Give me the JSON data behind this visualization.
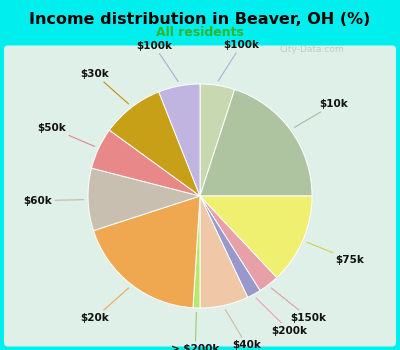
{
  "title": "Income distribution in Beaver, OH (%)",
  "subtitle": "All residents",
  "title_color": "#000000",
  "subtitle_color": "#2db82d",
  "background_color": "#00EEEE",
  "chart_bg_gradient_top": "#d6f0e8",
  "chart_bg_gradient_bottom": "#e8f8f0",
  "watermark": "City-Data.com",
  "slices": [
    {
      "label": "$100k",
      "value": 5,
      "color": "#c8d8b0"
    },
    {
      "label": "$10k",
      "value": 20,
      "color": "#aec4a0"
    },
    {
      "label": "$75k",
      "value": 13,
      "color": "#f0f070"
    },
    {
      "label": "$150k",
      "value": 3,
      "color": "#e8a0a8"
    },
    {
      "label": "$200k",
      "value": 2,
      "color": "#9898cc"
    },
    {
      "label": "$40k",
      "value": 7,
      "color": "#f0c8a8"
    },
    {
      "label": "> $200k",
      "value": 1,
      "color": "#b8e870"
    },
    {
      "label": "$20k",
      "value": 19,
      "color": "#f0a850"
    },
    {
      "label": "$60k",
      "value": 9,
      "color": "#c8bfb0"
    },
    {
      "label": "$50k",
      "value": 6,
      "color": "#e88888"
    },
    {
      "label": "$30k",
      "value": 9,
      "color": "#c8a018"
    },
    {
      "label": "$100k_b",
      "value": 6,
      "color": "#c0b4e0"
    }
  ],
  "line_colors": {
    "$100k": "#b0b0d0",
    "$10k": "#a0c0a0",
    "$75k": "#d0d050",
    "$150k": "#e0a0a0",
    "$200k": "#f0a0b0",
    "$40k": "#d0b8a8",
    "> $200k": "#a0c870",
    "$20k": "#f0a850",
    "$60k": "#c0b8a8",
    "$50k": "#e08888",
    "$30k": "#c09010",
    "$100k_b": "#b0a8d8"
  }
}
